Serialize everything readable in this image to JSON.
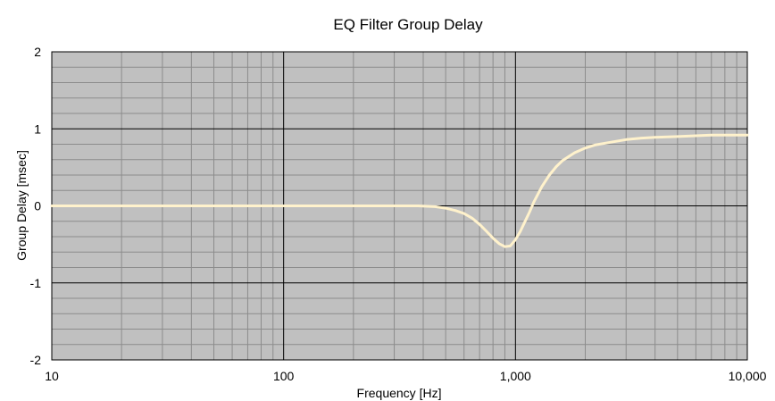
{
  "chart_data": {
    "type": "line",
    "title": "EQ Filter Group Delay",
    "xlabel": "Frequency [Hz]",
    "ylabel": "Group Delay [msec]",
    "xscale": "log",
    "xlim": [
      10,
      10000
    ],
    "ylim": [
      -2,
      2
    ],
    "xticks": [
      10,
      100,
      1000,
      10000
    ],
    "xtick_labels": [
      "10",
      "100",
      "1,000",
      "10,000"
    ],
    "yticks": [
      2,
      1,
      0,
      -1,
      -2
    ],
    "ytick_labels": [
      "2",
      "1",
      "0",
      "-1",
      "-2"
    ],
    "grid": true,
    "legend": "none",
    "colors": {
      "plot_bg": "#c0c0c0",
      "line": "#fff2cc",
      "grid_minor": "#8c8c8c",
      "grid_major": "#000000"
    },
    "series": [
      {
        "x": [
          10,
          20,
          50,
          100,
          200,
          300,
          380,
          450,
          500,
          550,
          600,
          650,
          700,
          750,
          800,
          850,
          900,
          950,
          1000,
          1050,
          1100,
          1150,
          1200,
          1300,
          1400,
          1500,
          1600,
          1800,
          2000,
          2200,
          2500,
          3000,
          3500,
          4000,
          5000,
          6000,
          7000,
          8000,
          10000
        ],
        "y": [
          0,
          0,
          0,
          0,
          0,
          0,
          0,
          -0.01,
          -0.03,
          -0.06,
          -0.1,
          -0.16,
          -0.24,
          -0.33,
          -0.42,
          -0.49,
          -0.53,
          -0.52,
          -0.44,
          -0.33,
          -0.2,
          -0.08,
          0.05,
          0.25,
          0.4,
          0.51,
          0.59,
          0.69,
          0.75,
          0.79,
          0.82,
          0.86,
          0.88,
          0.89,
          0.9,
          0.91,
          0.92,
          0.92,
          0.92
        ]
      }
    ]
  }
}
